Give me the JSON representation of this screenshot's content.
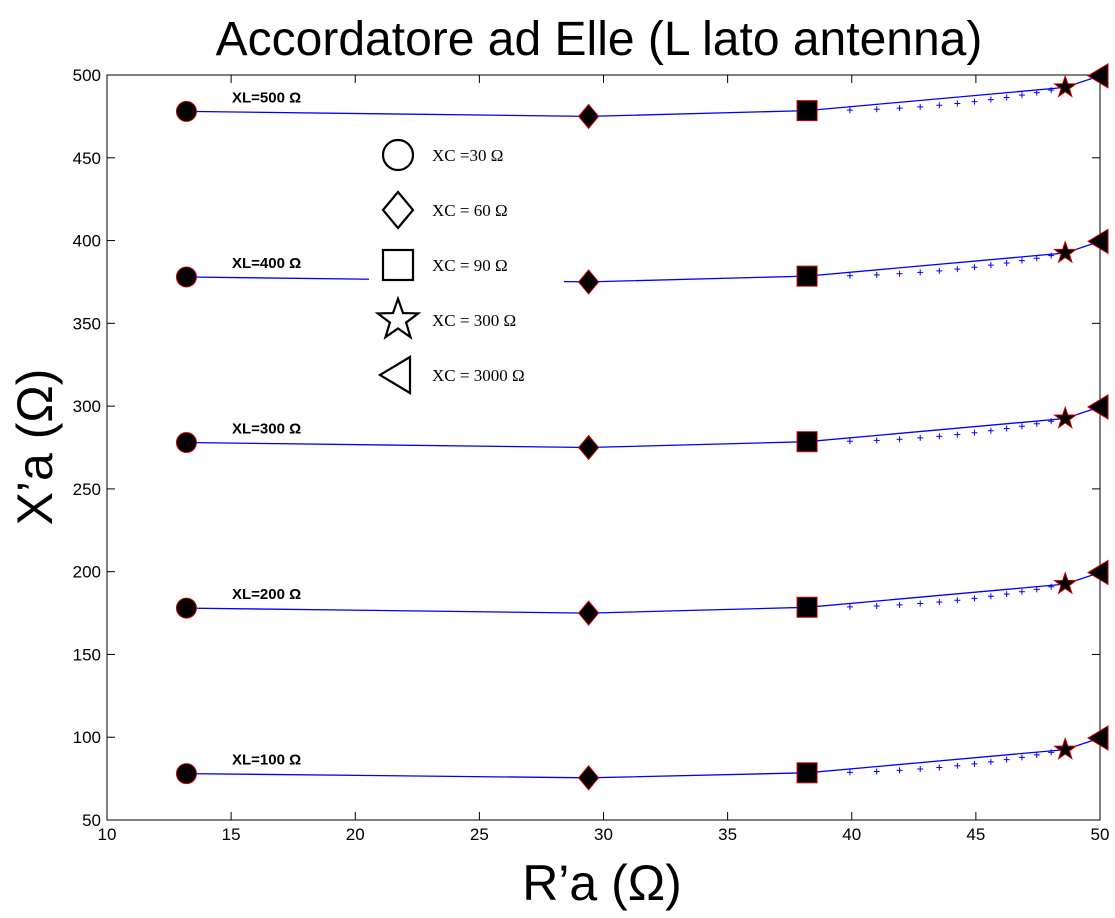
{
  "chart_data": {
    "type": "line",
    "title": "Accordatore ad Elle (L lato antenna)",
    "xlabel": "R’a (Ω)",
    "ylabel": "X’a (Ω)",
    "xlim": [
      10,
      50
    ],
    "ylim": [
      50,
      500
    ],
    "xticks": [
      10,
      15,
      20,
      25,
      30,
      35,
      40,
      45,
      50
    ],
    "yticks": [
      50,
      100,
      150,
      200,
      250,
      300,
      350,
      400,
      450,
      500
    ],
    "grid": false,
    "line_color": "#0000ff",
    "marker_fill": "#000000",
    "marker_edge": "#cc0000",
    "x": [
      13.2,
      29.4,
      38.2,
      48.6,
      50.0
    ],
    "series": [
      {
        "name": "XL=500 Ω",
        "values": [
          478,
          475,
          478.5,
          492.5,
          499.5
        ]
      },
      {
        "name": "XL=400 Ω",
        "values": [
          378,
          375,
          378.5,
          392.5,
          399.5
        ]
      },
      {
        "name": "XL=300 Ω",
        "values": [
          278,
          275,
          278.5,
          292.5,
          299.5
        ]
      },
      {
        "name": "XL=200 Ω",
        "values": [
          178,
          175,
          178.5,
          192.5,
          199.5
        ]
      },
      {
        "name": "XL=100 Ω",
        "values": [
          78,
          75.5,
          78.5,
          92.5,
          99.5
        ]
      }
    ],
    "markers": [
      "circle",
      "diamond",
      "square",
      "star",
      "triangle-left"
    ],
    "legend": {
      "placement": "upper-left-inside",
      "entries": [
        {
          "marker": "circle",
          "label": "XC =30 Ω"
        },
        {
          "marker": "diamond",
          "label": "XC = 60 Ω"
        },
        {
          "marker": "square",
          "label": "XC = 90 Ω"
        },
        {
          "marker": "star",
          "label": "XC = 300 Ω"
        },
        {
          "marker": "triangle-left",
          "label": "XC = 3000 Ω"
        }
      ]
    }
  }
}
